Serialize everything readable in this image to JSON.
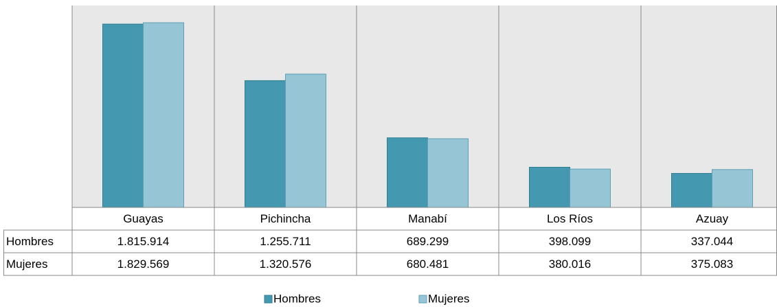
{
  "chart_data": {
    "type": "bar",
    "categories": [
      "Guayas",
      "Pichincha",
      "Manabí",
      "Los Ríos",
      "Azuay"
    ],
    "series": [
      {
        "name": "Hombres",
        "color": "#4499b0",
        "values": [
          1815914,
          1255711,
          689299,
          398099,
          337044
        ],
        "value_labels": [
          "1.815.914",
          "1.255.711",
          "689.299",
          "398.099",
          "337.044"
        ]
      },
      {
        "name": "Mujeres",
        "color": "#96c5d6",
        "values": [
          1829569,
          1320576,
          680481,
          380016,
          375083
        ],
        "value_labels": [
          "1.829.569",
          "1.320.576",
          "680.481",
          "380.016",
          "375.083"
        ]
      }
    ],
    "ylim": [
      0,
      2000000
    ]
  }
}
